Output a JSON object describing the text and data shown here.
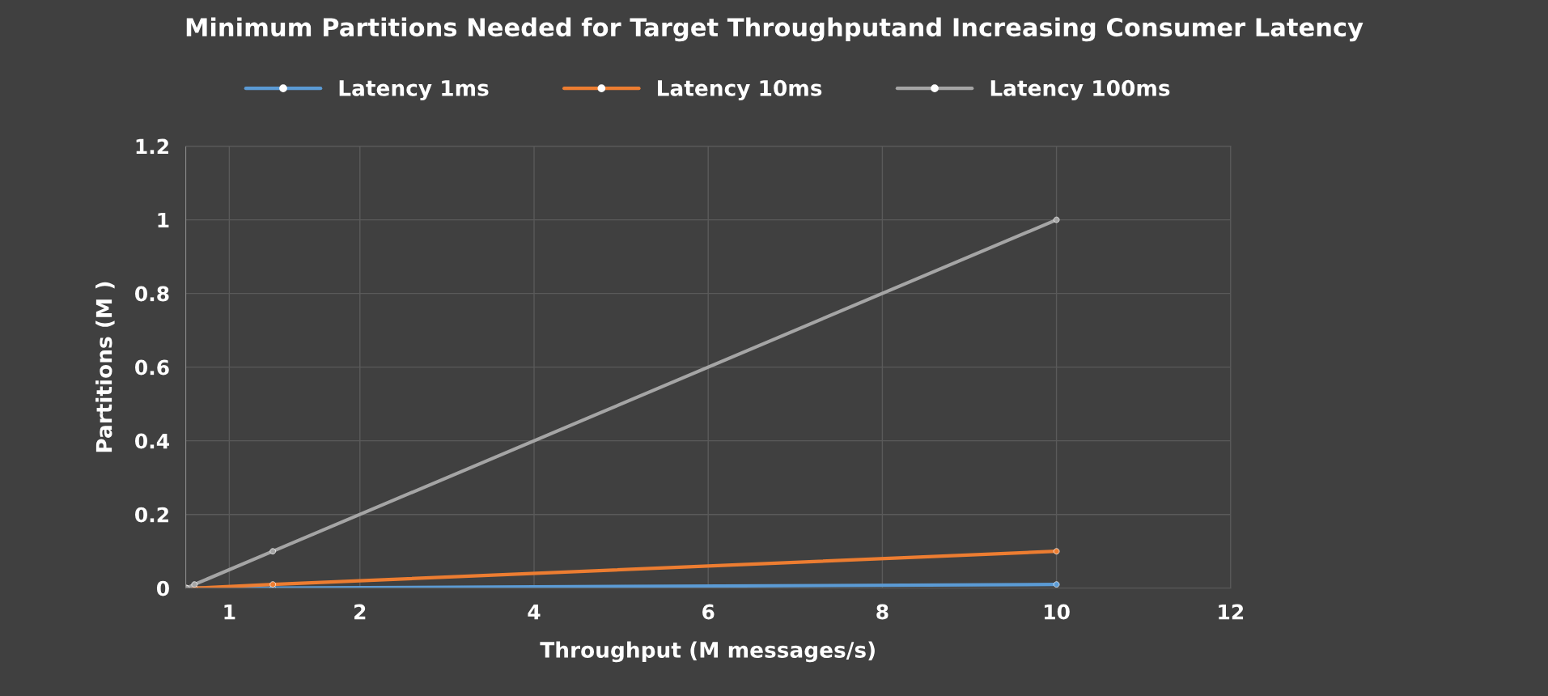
{
  "chart_data": {
    "type": "line",
    "title": "Minimum Partitions Needed for Target Throughputand Increasing Consumer Latency",
    "xlabel": "Throughput (M messages/s)",
    "ylabel": "Partitions (M )",
    "x": [
      0.01,
      0.1,
      1,
      10
    ],
    "series": [
      {
        "name": "Latency 1ms",
        "color": "#5b9bd5",
        "values": [
          0,
          0,
          0,
          0.01
        ]
      },
      {
        "name": "Latency 10ms",
        "color": "#ed7d31",
        "values": [
          0,
          0,
          0.01,
          0.1
        ]
      },
      {
        "name": "Latency 100ms",
        "color": "#a5a5a5",
        "values": [
          0,
          0.01,
          0.1,
          1
        ]
      }
    ],
    "xlim": [
      0,
      12
    ],
    "xticks": [
      {
        "value": 0.5,
        "label": "1"
      },
      2,
      4,
      6,
      8,
      10,
      12
    ],
    "ylim": [
      0,
      1.2
    ],
    "yticks": [
      0,
      0.2,
      0.4,
      0.6,
      0.8,
      1,
      1.2
    ],
    "grid": true,
    "legend": "top",
    "marker": "circle",
    "line_style": "solid"
  }
}
